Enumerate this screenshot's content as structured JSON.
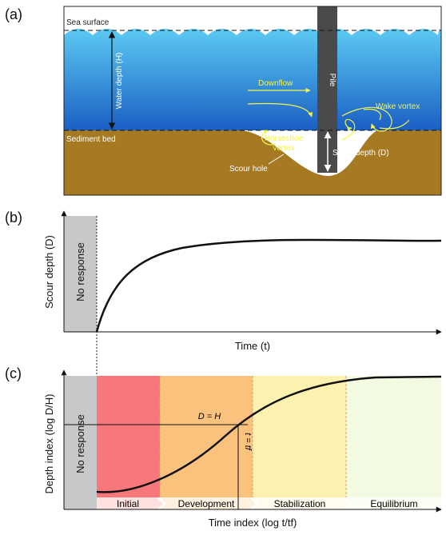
{
  "panel_a": {
    "label": "(a)",
    "sea_surface": "Sea surface",
    "water_depth": "Water depth (H)",
    "downflow": "Downflow",
    "pile": "Pile",
    "wake_vortex": "Wake vortex",
    "sediment_bed": "Sediment bed",
    "horseshoe_vortex": [
      "Horseshoe",
      "vortex"
    ],
    "scour_depth": "Scour depth (D)",
    "scour_hole": "Scour hole"
  },
  "panel_b": {
    "label": "(b)",
    "y_label": "Scour depth (D)",
    "x_label": "Time (t)",
    "no_response": "No response"
  },
  "panel_c": {
    "label": "(c)",
    "y_label": "Depth index (log D/H)",
    "x_label": "Time index (log t/tf)",
    "no_response": "No response",
    "d_equals_h": "D = H",
    "t_equals_tf": "t = tf",
    "stages": [
      "Initial",
      "Development",
      "Stabilization",
      "Equilibrium"
    ]
  }
}
